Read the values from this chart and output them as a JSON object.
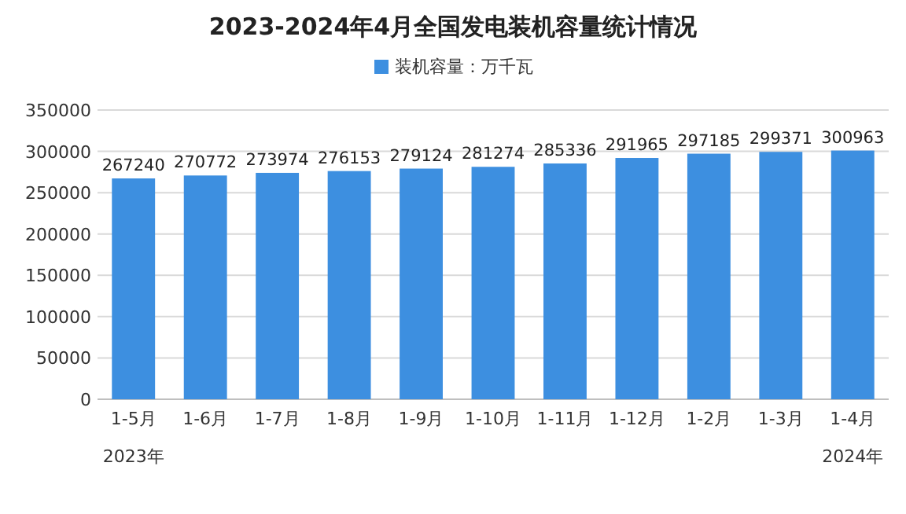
{
  "chart_data": {
    "type": "bar",
    "title": "2023-2024年4月全国发电装机容量统计情况",
    "categories": [
      "1-5月",
      "1-6月",
      "1-7月",
      "1-8月",
      "1-9月",
      "1-10月",
      "1-11月",
      "1-12月",
      "1-2月",
      "1-3月",
      "1-4月"
    ],
    "series": [
      {
        "name": "装机容量：万千瓦",
        "color": "#3d8fe0",
        "values": [
          267240,
          270772,
          273974,
          276153,
          279124,
          281274,
          285336,
          291965,
          297185,
          299371,
          300963
        ]
      }
    ],
    "ylim": [
      0,
      350000
    ],
    "yticks": [
      0,
      50000,
      100000,
      150000,
      200000,
      250000,
      300000,
      350000
    ],
    "grid": "y",
    "legend": "top",
    "data_labels": true,
    "annotations": [
      "2023年",
      "2024年"
    ]
  }
}
